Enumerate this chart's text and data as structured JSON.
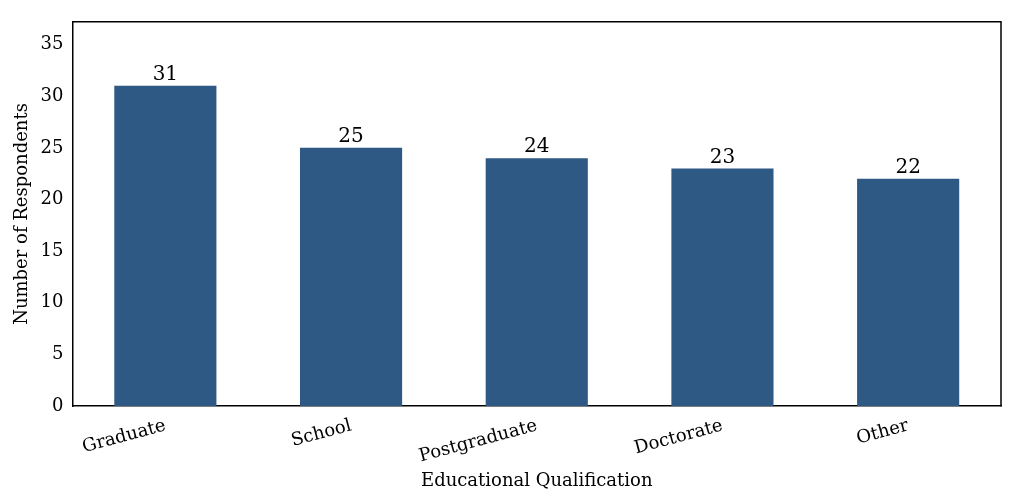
{
  "chart_data": {
    "type": "bar",
    "xlabel": "Educational Qualification",
    "ylabel": "Number of Respondents",
    "categories": [
      "Graduate",
      "School",
      "Postgraduate",
      "Doctorate",
      "Other"
    ],
    "values": [
      31,
      25,
      24,
      23,
      22
    ],
    "color": "#2e5984",
    "ylim": [
      0,
      37.2
    ],
    "yticks": [
      0,
      5,
      10,
      15,
      20,
      25,
      30,
      35
    ],
    "grid": false,
    "data_labels": true
  }
}
